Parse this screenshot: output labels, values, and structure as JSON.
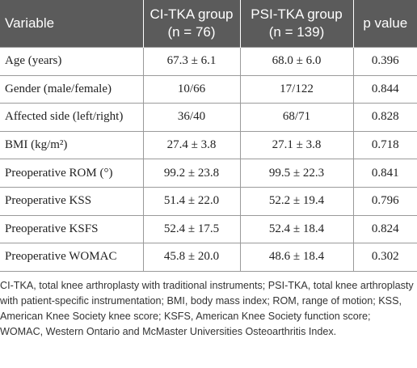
{
  "table": {
    "header": [
      "Variable",
      [
        "CI-TKA group",
        "(n = 76)"
      ],
      [
        "PSI-TKA group",
        "(n = 139)"
      ],
      "p value"
    ],
    "rows": [
      [
        "Age (years)",
        "67.3 ± 6.1",
        "68.0 ± 6.0",
        "0.396"
      ],
      [
        "Gender (male/female)",
        "10/66",
        "17/122",
        "0.844"
      ],
      [
        "Affected side (left/right)",
        "36/40",
        "68/71",
        "0.828"
      ],
      [
        "BMI (kg/m²)",
        "27.4 ± 3.8",
        "27.1 ± 3.8",
        "0.718"
      ],
      [
        "Preoperative ROM (°)",
        "99.2 ± 23.8",
        "99.5 ± 22.3",
        "0.841"
      ],
      [
        "Preoperative KSS",
        "51.4 ± 22.0",
        "52.2 ± 19.4",
        "0.796"
      ],
      [
        "Preoperative KSFS",
        "52.4 ± 17.5",
        "52.4 ± 18.4",
        "0.824"
      ],
      [
        "Preoperative WOMAC",
        "45.8 ± 20.0",
        "48.6 ± 18.4",
        "0.302"
      ]
    ]
  },
  "footnote": "CI-TKA, total knee arthroplasty with traditional instruments; PSI-TKA, total knee arthroplasty with patient-specific instrumentation; BMI, body mass index; ROM, range of motion; KSS, American Knee Society knee score; KSFS, American Knee Society function score; WOMAC, Western Ontario and McMaster Universities Osteoarthritis Index."
}
